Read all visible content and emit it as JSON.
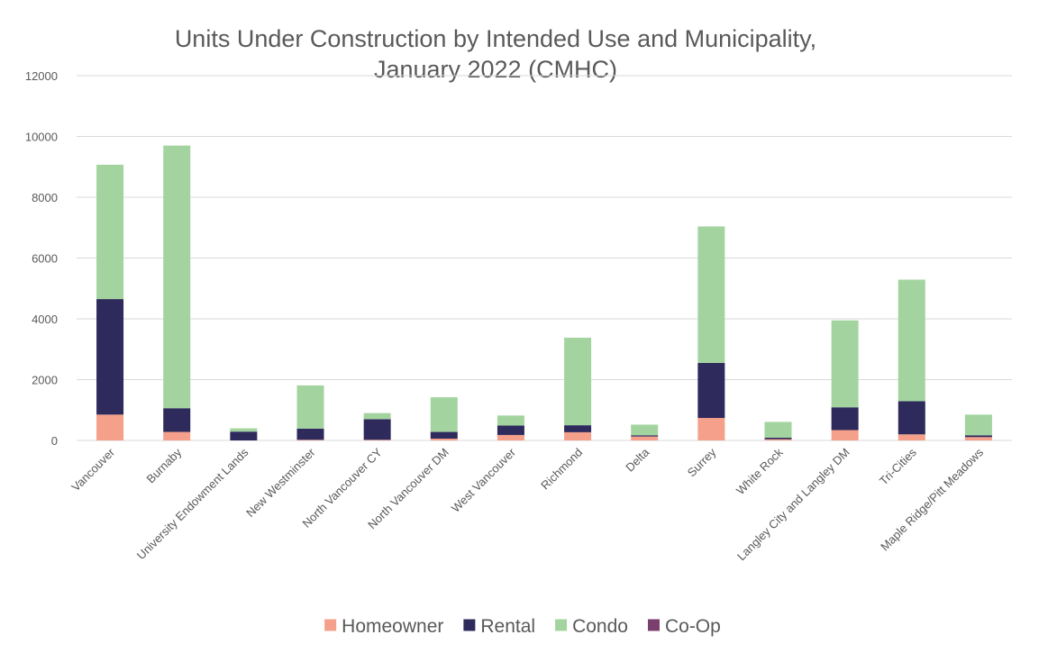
{
  "chart_data": {
    "type": "bar",
    "stacked": true,
    "title": "Units Under Construction by Intended Use and Municipality,",
    "subtitle": "January 2022 (CMHC)",
    "xlabel": "",
    "ylabel": "",
    "ylim": [
      0,
      12000
    ],
    "yticks": [
      0,
      2000,
      4000,
      6000,
      8000,
      10000,
      12000
    ],
    "grid": true,
    "legend_position": "bottom",
    "categories": [
      "Vancouver",
      "Burnaby",
      "University Endowment Lands",
      "New Westminster",
      "North Vancouver CY",
      "North Vancouver DM",
      "West Vancouver",
      "Richmond",
      "Delta",
      "Surrey",
      "White Rock",
      "Langley City and Langley DM",
      "Tri-Cities",
      "Maple Ridge/Pitt Meadows"
    ],
    "series": [
      {
        "name": "Homeowner",
        "color": "#f4a08a",
        "values": [
          850,
          280,
          0,
          20,
          20,
          60,
          180,
          270,
          130,
          740,
          40,
          340,
          200,
          110
        ]
      },
      {
        "name": "Rental",
        "color": "#2e2a5c",
        "values": [
          3800,
          780,
          290,
          370,
          680,
          220,
          310,
          230,
          40,
          1810,
          50,
          750,
          1090,
          60
        ]
      },
      {
        "name": "Condo",
        "color": "#a3d4a0",
        "values": [
          4420,
          8640,
          110,
          1420,
          200,
          1140,
          330,
          2880,
          350,
          4490,
          520,
          2860,
          4000,
          680
        ]
      },
      {
        "name": "Co-Op",
        "color": "#7b3f6e",
        "values": [
          0,
          0,
          0,
          0,
          0,
          0,
          0,
          0,
          0,
          0,
          0,
          0,
          0,
          0
        ]
      }
    ]
  }
}
